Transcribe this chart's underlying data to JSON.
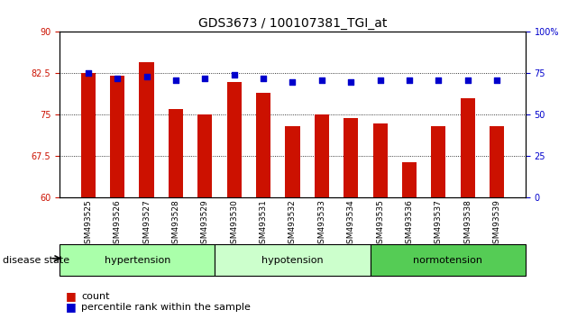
{
  "title": "GDS3673 / 100107381_TGI_at",
  "samples": [
    "GSM493525",
    "GSM493526",
    "GSM493527",
    "GSM493528",
    "GSM493529",
    "GSM493530",
    "GSM493531",
    "GSM493532",
    "GSM493533",
    "GSM493534",
    "GSM493535",
    "GSM493536",
    "GSM493537",
    "GSM493538",
    "GSM493539"
  ],
  "bar_values": [
    82.5,
    82.0,
    84.5,
    76.0,
    75.0,
    81.0,
    79.0,
    73.0,
    75.0,
    74.5,
    73.5,
    66.5,
    73.0,
    78.0,
    73.0
  ],
  "pct_right_vals": [
    75,
    72,
    73,
    71,
    72,
    74,
    72,
    70,
    71,
    70,
    71,
    71,
    71,
    71,
    71
  ],
  "bar_color": "#cc1100",
  "dot_color": "#0000cc",
  "ylim_left": [
    60,
    90
  ],
  "ylim_right": [
    0,
    100
  ],
  "yticks_left": [
    60,
    67.5,
    75,
    82.5,
    90
  ],
  "yticks_right": [
    0,
    25,
    50,
    75,
    100
  ],
  "ytick_labels_left": [
    "60",
    "67.5",
    "75",
    "82.5",
    "90"
  ],
  "ytick_labels_right": [
    "0",
    "25",
    "50",
    "75",
    "100%"
  ],
  "groups": [
    {
      "label": "hypertension",
      "start": 0,
      "end": 5
    },
    {
      "label": "hypotension",
      "start": 5,
      "end": 10
    },
    {
      "label": "normotension",
      "start": 10,
      "end": 15
    }
  ],
  "group_colors": [
    "#aaffaa",
    "#ccffcc",
    "#55cc55"
  ],
  "group_label": "disease state",
  "legend_count_label": "count",
  "legend_pct_label": "percentile rank within the sample",
  "bar_width": 0.5,
  "tick_area_color": "#cccccc"
}
